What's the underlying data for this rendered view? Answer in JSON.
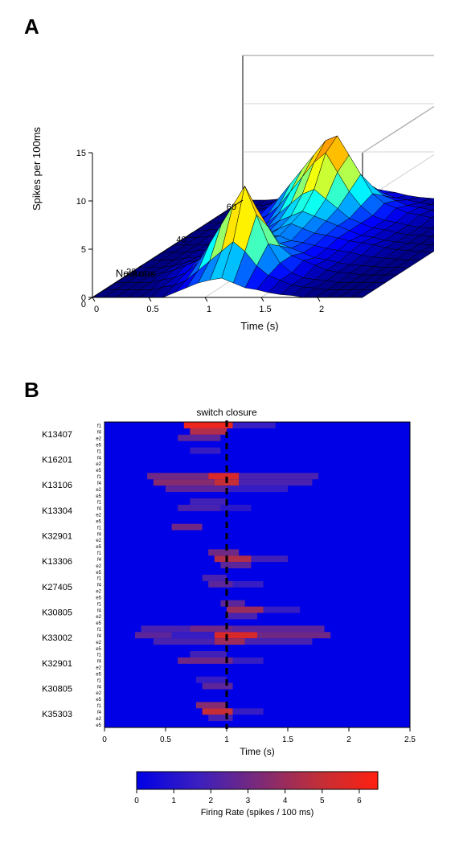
{
  "panelA": {
    "label": "A",
    "type": "surface3d",
    "title": "",
    "zlabel": "Spikes per 100ms",
    "xlabel": "Time (s)",
    "ylabel": "Neurons",
    "label_fontsize": 13,
    "tick_fontsize": 11,
    "x": {
      "min": 0,
      "max": 2.4,
      "ticks": [
        0,
        0.5,
        1,
        1.5,
        2
      ]
    },
    "y": {
      "min": 0,
      "max": 60,
      "ticks": [
        0,
        20,
        40,
        60
      ]
    },
    "z": {
      "min": 0,
      "max": 15,
      "ticks": [
        0,
        5,
        10,
        15
      ]
    },
    "grid_color": "#c8c8c8",
    "axis_color": "#000000",
    "background_color": "#ffffff",
    "colormap": [
      {
        "v": 0.0,
        "c": "#00007f"
      },
      {
        "v": 0.125,
        "c": "#0000ff"
      },
      {
        "v": 0.375,
        "c": "#00ffff"
      },
      {
        "v": 0.625,
        "c": "#ffff00"
      },
      {
        "v": 0.875,
        "c": "#ff7f00"
      },
      {
        "v": 1.0,
        "c": "#7f0000"
      }
    ],
    "surface": {
      "nrows": 14,
      "ncols": 24,
      "z": [
        [
          0,
          0,
          0,
          0,
          0,
          0,
          0,
          0.5,
          1,
          1.5,
          1.8,
          2,
          1.5,
          1,
          0.8,
          0.5,
          0.3,
          0.2,
          0,
          0,
          0,
          0,
          0,
          0
        ],
        [
          0,
          0,
          0,
          0,
          0,
          0.3,
          0.5,
          1,
          2,
          3,
          4,
          5,
          4,
          2.5,
          1.5,
          1,
          0.5,
          0.3,
          0.2,
          0,
          0,
          0,
          0,
          0
        ],
        [
          0,
          0,
          0,
          0,
          0.3,
          0.5,
          1,
          2,
          4,
          6,
          8,
          10,
          7,
          4,
          2,
          1,
          0.5,
          0.3,
          0.2,
          0,
          0,
          0,
          0,
          0
        ],
        [
          0,
          0,
          0,
          0.2,
          0.5,
          1,
          1.5,
          2.5,
          4,
          5.5,
          6.5,
          7,
          5,
          3,
          2,
          1.5,
          1,
          0.5,
          0.3,
          0.2,
          0,
          0,
          0,
          0
        ],
        [
          0,
          0,
          0,
          0.2,
          0.5,
          0.8,
          1,
          1.5,
          2,
          2.5,
          3,
          3,
          2.5,
          2,
          1.5,
          1,
          0.8,
          0.5,
          0.3,
          0.2,
          0.1,
          0,
          0,
          0
        ],
        [
          0,
          0,
          0,
          0.2,
          0.3,
          0.5,
          0.8,
          1,
          1.5,
          2,
          2.5,
          2.5,
          2,
          1.8,
          1.5,
          1.2,
          1,
          0.8,
          0.5,
          0.3,
          0.2,
          0.1,
          0,
          0
        ],
        [
          0,
          0,
          0,
          0.2,
          0.3,
          0.5,
          0.8,
          1,
          1.5,
          2,
          2.5,
          3,
          2.5,
          2,
          1.8,
          1.5,
          1.2,
          1,
          0.8,
          0.5,
          0.3,
          0.2,
          0.1,
          0
        ],
        [
          0,
          0,
          0,
          0.1,
          0.3,
          0.5,
          0.8,
          1.2,
          1.8,
          2.5,
          3,
          3.5,
          3,
          2.5,
          2,
          1.5,
          1,
          0.8,
          0.5,
          0.3,
          0.2,
          0.1,
          0,
          0
        ],
        [
          0,
          0,
          0.1,
          0.3,
          0.5,
          0.8,
          1,
          1.5,
          2.5,
          3.5,
          4.5,
          5,
          4,
          3,
          2,
          1.5,
          1,
          0.8,
          0.5,
          0.3,
          0.2,
          0.1,
          0,
          0
        ],
        [
          0,
          0,
          0.1,
          0.3,
          0.5,
          1,
          1.5,
          2.5,
          4,
          5.5,
          7,
          8,
          6,
          4,
          2.5,
          1.5,
          1,
          0.8,
          0.5,
          0.3,
          0.2,
          0.1,
          0,
          0
        ],
        [
          0,
          0,
          0.2,
          0.5,
          1,
          1.5,
          2.5,
          4,
          5.5,
          7,
          8.5,
          9,
          7,
          5,
          3,
          2,
          1.5,
          1,
          0.8,
          0.5,
          0.3,
          0.2,
          0.1,
          0
        ],
        [
          0,
          0,
          0.2,
          0.5,
          0.8,
          1.2,
          2,
          3,
          4,
          5,
          5.5,
          5,
          4,
          3,
          2,
          1.5,
          1,
          0.8,
          0.5,
          0.3,
          0.2,
          0.1,
          0,
          0
        ],
        [
          0,
          0,
          0.1,
          0.3,
          0.5,
          0.8,
          1,
          1.5,
          2,
          2.5,
          3,
          2.5,
          2,
          1.5,
          1,
          0.8,
          0.5,
          0.3,
          0.2,
          0.1,
          0,
          0,
          0,
          0
        ],
        [
          0,
          0,
          0,
          0.1,
          0.2,
          0.3,
          0.5,
          0.8,
          1,
          1.2,
          1.5,
          1.2,
          1,
          0.8,
          0.5,
          0.3,
          0.2,
          0.1,
          0,
          0,
          0,
          0,
          0,
          0
        ]
      ],
      "edge_color": "#000000",
      "edge_width": 0.5
    }
  },
  "panelB": {
    "label": "B",
    "type": "heatmap",
    "title": "switch closure",
    "title_fontsize": 12,
    "xlabel": "Time (s)",
    "label_fontsize": 12,
    "tick_fontsize": 10,
    "x": {
      "min": 0,
      "max": 2.5,
      "ticks": [
        0,
        0.5,
        1,
        1.5,
        2,
        2.5
      ]
    },
    "event_line": {
      "x": 1.0,
      "color": "#000000",
      "dash": "8,6",
      "width": 3
    },
    "background_color": "#0000e6",
    "groups": [
      "K13407",
      "K16201",
      "K13106",
      "K13304",
      "K32901",
      "K13306",
      "K27405",
      "K30805",
      "K33002",
      "K32901",
      "K30805",
      "K35303"
    ],
    "sub_labels": [
      "f1",
      "f4",
      "e2",
      "e5"
    ],
    "group_label_fontsize": 11,
    "sub_label_fontsize": 6,
    "colorbar": {
      "label": "Firing Rate (spikes / 100 ms)",
      "label_fontsize": 11,
      "min": 0,
      "max": 6.5,
      "ticks": [
        0,
        1,
        2,
        3,
        4,
        5,
        6
      ],
      "stops": [
        {
          "v": 0.0,
          "c": "#0000e6"
        },
        {
          "v": 0.25,
          "c": "#3a1fc0"
        },
        {
          "v": 0.5,
          "c": "#7a2a7a"
        },
        {
          "v": 0.75,
          "c": "#c02f3a"
        },
        {
          "v": 1.0,
          "c": "#ff2010"
        }
      ]
    },
    "heat_rows": [
      {
        "bands": [
          {
            "x0": 0.65,
            "x1": 1.05,
            "v": 6.0
          },
          {
            "x0": 1.05,
            "x1": 1.4,
            "v": 1.5
          }
        ]
      },
      {
        "bands": [
          {
            "x0": 0.7,
            "x1": 1.0,
            "v": 4.5
          }
        ]
      },
      {
        "bands": [
          {
            "x0": 0.6,
            "x1": 0.95,
            "v": 2.5
          }
        ]
      },
      {
        "bands": []
      },
      {
        "bands": [
          {
            "x0": 0.7,
            "x1": 0.95,
            "v": 1.5
          }
        ]
      },
      {
        "bands": []
      },
      {
        "bands": []
      },
      {
        "bands": []
      },
      {
        "bands": [
          {
            "x0": 0.35,
            "x1": 0.85,
            "v": 3.0
          },
          {
            "x0": 0.85,
            "x1": 1.1,
            "v": 5.5
          },
          {
            "x0": 1.1,
            "x1": 1.75,
            "v": 2.0
          }
        ]
      },
      {
        "bands": [
          {
            "x0": 0.4,
            "x1": 0.9,
            "v": 3.5
          },
          {
            "x0": 0.9,
            "x1": 1.1,
            "v": 5.0
          },
          {
            "x0": 1.1,
            "x1": 1.7,
            "v": 2.0
          }
        ]
      },
      {
        "bands": [
          {
            "x0": 0.5,
            "x1": 1.0,
            "v": 2.5
          },
          {
            "x0": 1.0,
            "x1": 1.5,
            "v": 1.5
          }
        ]
      },
      {
        "bands": []
      },
      {
        "bands": [
          {
            "x0": 0.7,
            "x1": 1.0,
            "v": 1.8
          }
        ]
      },
      {
        "bands": [
          {
            "x0": 0.6,
            "x1": 0.95,
            "v": 2.0
          },
          {
            "x0": 0.95,
            "x1": 1.2,
            "v": 1.2
          }
        ]
      },
      {
        "bands": []
      },
      {
        "bands": []
      },
      {
        "bands": [
          {
            "x0": 0.55,
            "x1": 0.8,
            "v": 3.0
          }
        ]
      },
      {
        "bands": []
      },
      {
        "bands": []
      },
      {
        "bands": []
      },
      {
        "bands": [
          {
            "x0": 0.85,
            "x1": 1.1,
            "v": 3.0
          }
        ]
      },
      {
        "bands": [
          {
            "x0": 0.9,
            "x1": 1.2,
            "v": 4.5
          },
          {
            "x0": 1.2,
            "x1": 1.5,
            "v": 1.8
          }
        ]
      },
      {
        "bands": [
          {
            "x0": 0.95,
            "x1": 1.2,
            "v": 2.5
          }
        ]
      },
      {
        "bands": []
      },
      {
        "bands": [
          {
            "x0": 0.8,
            "x1": 1.0,
            "v": 2.0
          }
        ]
      },
      {
        "bands": [
          {
            "x0": 0.85,
            "x1": 1.05,
            "v": 2.5
          },
          {
            "x0": 1.05,
            "x1": 1.3,
            "v": 1.5
          }
        ]
      },
      {
        "bands": []
      },
      {
        "bands": []
      },
      {
        "bands": [
          {
            "x0": 0.95,
            "x1": 1.15,
            "v": 2.5
          }
        ]
      },
      {
        "bands": [
          {
            "x0": 1.0,
            "x1": 1.3,
            "v": 4.0
          },
          {
            "x0": 1.3,
            "x1": 1.6,
            "v": 1.5
          }
        ]
      },
      {
        "bands": [
          {
            "x0": 1.0,
            "x1": 1.25,
            "v": 2.0
          }
        ]
      },
      {
        "bands": []
      },
      {
        "bands": [
          {
            "x0": 0.3,
            "x1": 0.7,
            "v": 2.0
          },
          {
            "x0": 0.7,
            "x1": 1.05,
            "v": 3.0
          },
          {
            "x0": 1.05,
            "x1": 1.8,
            "v": 2.5
          }
        ]
      },
      {
        "bands": [
          {
            "x0": 0.25,
            "x1": 0.55,
            "v": 2.5
          },
          {
            "x0": 0.55,
            "x1": 0.9,
            "v": 1.5
          },
          {
            "x0": 0.9,
            "x1": 1.25,
            "v": 5.5
          },
          {
            "x0": 1.25,
            "x1": 1.85,
            "v": 3.0
          }
        ]
      },
      {
        "bands": [
          {
            "x0": 0.4,
            "x1": 0.9,
            "v": 2.0
          },
          {
            "x0": 0.9,
            "x1": 1.15,
            "v": 4.0
          },
          {
            "x0": 1.15,
            "x1": 1.7,
            "v": 2.0
          }
        ]
      },
      {
        "bands": []
      },
      {
        "bands": [
          {
            "x0": 0.7,
            "x1": 1.0,
            "v": 1.8
          }
        ]
      },
      {
        "bands": [
          {
            "x0": 0.6,
            "x1": 1.05,
            "v": 3.0
          },
          {
            "x0": 1.05,
            "x1": 1.3,
            "v": 1.5
          }
        ]
      },
      {
        "bands": []
      },
      {
        "bands": []
      },
      {
        "bands": [
          {
            "x0": 0.75,
            "x1": 1.0,
            "v": 1.5
          }
        ]
      },
      {
        "bands": [
          {
            "x0": 0.8,
            "x1": 1.05,
            "v": 2.5
          }
        ]
      },
      {
        "bands": []
      },
      {
        "bands": []
      },
      {
        "bands": [
          {
            "x0": 0.75,
            "x1": 1.0,
            "v": 3.5
          }
        ]
      },
      {
        "bands": [
          {
            "x0": 0.8,
            "x1": 1.05,
            "v": 5.0
          },
          {
            "x0": 1.05,
            "x1": 1.3,
            "v": 1.5
          }
        ]
      },
      {
        "bands": [
          {
            "x0": 0.85,
            "x1": 1.05,
            "v": 2.0
          }
        ]
      },
      {
        "bands": []
      }
    ]
  }
}
